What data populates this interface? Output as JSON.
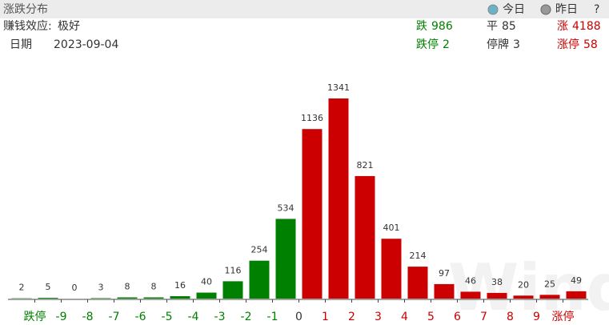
{
  "header": {
    "title": "涨跌分布",
    "today": "今日",
    "yesterday": "昨日",
    "help": "?"
  },
  "summary": {
    "effect_label": "赚钱效应:",
    "effect_value": "极好",
    "date_label": "日期",
    "date": "2023-09-04",
    "stats": [
      {
        "label": "跌",
        "value": 986,
        "color": "#008000"
      },
      {
        "label": "平",
        "value": 85,
        "color": "#333333"
      },
      {
        "label": "涨",
        "value": 4188,
        "color": "#cc0000"
      },
      {
        "label": "跌停",
        "value": 2,
        "color": "#008000"
      },
      {
        "label": "停牌",
        "value": 3,
        "color": "#333333"
      },
      {
        "label": "涨停",
        "value": 58,
        "color": "#cc0000"
      }
    ]
  },
  "watermark": "Wind",
  "chart_data": {
    "type": "histogram",
    "bins": [
      null,
      "跌停",
      "-9",
      "-8",
      "-7",
      "-6",
      "-5",
      "-4",
      "-3",
      "-2",
      "-1",
      "0",
      "1",
      "2",
      "3",
      "4",
      "5",
      "6",
      "7",
      "8",
      "9",
      "涨停",
      null
    ],
    "bin_colors": [
      null,
      "#008000",
      "#008000",
      "#008000",
      "#008000",
      "#008000",
      "#008000",
      "#008000",
      "#008000",
      "#008000",
      "#008000",
      "#333333",
      "#cc0000",
      "#cc0000",
      "#cc0000",
      "#cc0000",
      "#cc0000",
      "#cc0000",
      "#cc0000",
      "#cc0000",
      "#cc0000",
      "#cc0000",
      null
    ],
    "values": [
      2,
      5,
      0,
      3,
      8,
      8,
      16,
      40,
      116,
      254,
      534,
      1136,
      1341,
      821,
      401,
      214,
      97,
      46,
      38,
      20,
      25,
      49
    ],
    "colors": [
      "#008000",
      "#008000",
      "#008000",
      "#008000",
      "#008000",
      "#008000",
      "#008000",
      "#008000",
      "#008000",
      "#008000",
      "#008000",
      "#cc0000",
      "#cc0000",
      "#cc0000",
      "#cc0000",
      "#cc0000",
      "#cc0000",
      "#cc0000",
      "#cc0000",
      "#cc0000",
      "#cc0000",
      "#cc0000"
    ]
  }
}
